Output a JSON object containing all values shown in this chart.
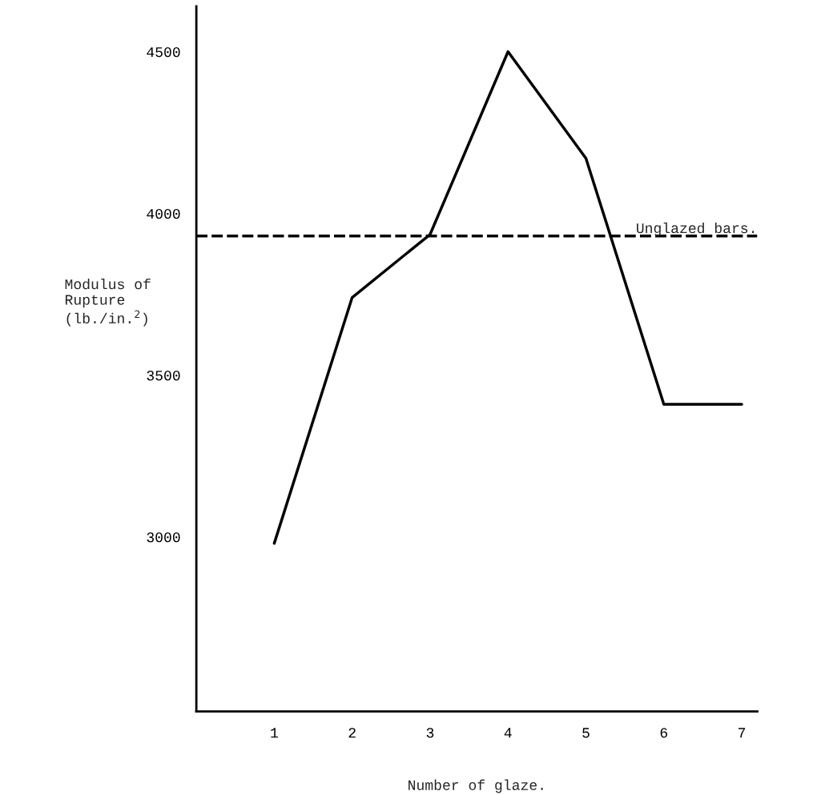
{
  "chart_data": {
    "type": "line",
    "xlabel": "Number of glaze.",
    "ylabel": "Modulus of\nRupture\n(lb./in.$^{2}$)",
    "x": [
      1,
      2,
      3,
      4,
      5,
      6,
      7
    ],
    "series": [
      {
        "color": "#000000",
        "values": [
          2980,
          3740,
          3935,
          4500,
          4170,
          3410,
          3410
        ]
      }
    ],
    "xlim": [
      0,
      7.2
    ],
    "xticks": [
      1,
      2,
      3,
      4,
      5,
      6,
      7
    ],
    "ylim": [
      2460,
      4640
    ],
    "yticks": [
      3000,
      3500,
      4000,
      4500
    ],
    "ref_lines": [
      {
        "axis": "y",
        "value": 3930,
        "label": "Unglazed bars.",
        "color": "#000000",
        "line_style": "dashed"
      }
    ],
    "grid": false,
    "marker": "none",
    "line_style": "solid"
  }
}
